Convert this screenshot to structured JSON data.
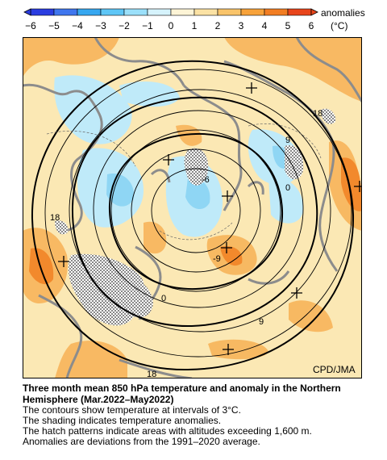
{
  "legend": {
    "title": "anomalies",
    "unit": "(°C)",
    "ticks": [
      "−6",
      "−5",
      "−4",
      "−3",
      "−2",
      "−1",
      "0",
      "1",
      "2",
      "3",
      "4",
      "5",
      "6"
    ],
    "colors": [
      "#2a3de0",
      "#3f76ee",
      "#36a7f0",
      "#5ec6f6",
      "#9be0fa",
      "#d6f3fc",
      "#fdf4d6",
      "#fbe2a4",
      "#f9c46a",
      "#f7a23a",
      "#f27d22",
      "#e8451b"
    ]
  },
  "map": {
    "contour_labels": [
      "18",
      "9",
      "0",
      "-9",
      "-6",
      "18",
      "0",
      "9",
      "18"
    ],
    "credit": "CPD/JMA"
  },
  "caption": {
    "title": "Three month mean 850 hPa temperature and anomaly in the Northern Hemisphere (Mar.2022–May2022)",
    "lines": [
      "The contours show temperature at intervals of 3°C.",
      "The shading indicates temperature anomalies.",
      "The hatch patterns indicate areas with altitudes exceeding 1,600 m.",
      "Anomalies are deviations from the 1991–2020 average."
    ]
  }
}
